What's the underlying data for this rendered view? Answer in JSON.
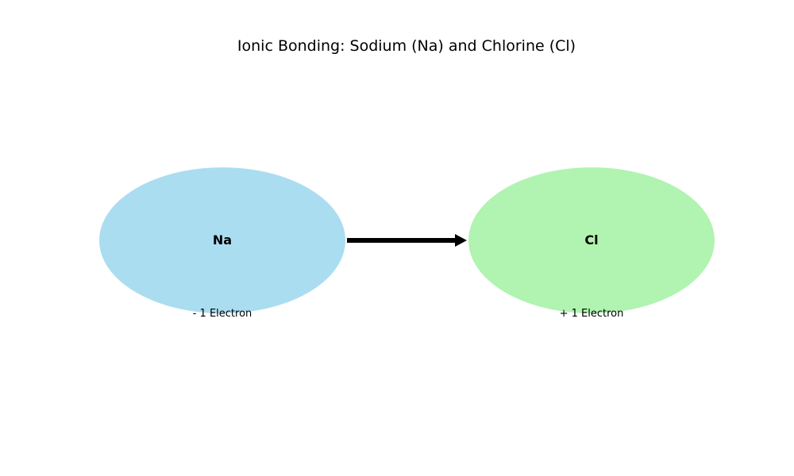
{
  "diagram": {
    "title": "Ionic Bonding: Sodium (Na) and Chlorine (Cl)",
    "atoms": {
      "sodium": {
        "symbol": "Na",
        "electron_label": "- 1 Electron",
        "color": "#87CEEB"
      },
      "chlorine": {
        "symbol": "Cl",
        "electron_label": "+ 1 Electron",
        "color": "#90EE90"
      }
    },
    "arrow": {
      "from": "sodium",
      "to": "chlorine",
      "color": "#000000"
    }
  }
}
